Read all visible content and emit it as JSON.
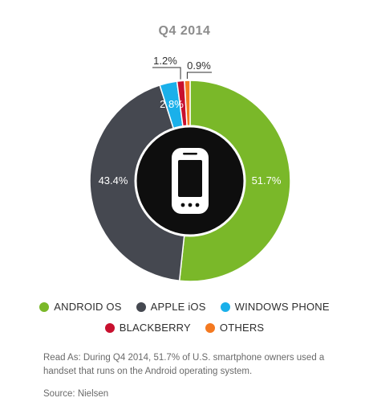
{
  "chart_data": {
    "type": "pie",
    "style": "donut",
    "title": "Q4 2014",
    "categories": [
      "ANDROID OS",
      "APPLE iOS",
      "WINDOWS PHONE",
      "BLACKBERRY",
      "OTHERS"
    ],
    "values": [
      51.7,
      43.4,
      2.8,
      1.2,
      0.9
    ],
    "value_labels": [
      "51.7%",
      "43.4%",
      "2.8%",
      "1.2%",
      "0.9%"
    ],
    "colors": [
      "#7ab829",
      "#454850",
      "#1ab0ea",
      "#c8102e",
      "#f47920"
    ],
    "center_icon": "smartphone-icon",
    "legend_position": "bottom"
  },
  "footer": {
    "note": "Read As: During Q4 2014, 51.7% of U.S. smartphone owners used a handset that runs on the Android operating system.",
    "source": "Source: Nielsen"
  }
}
